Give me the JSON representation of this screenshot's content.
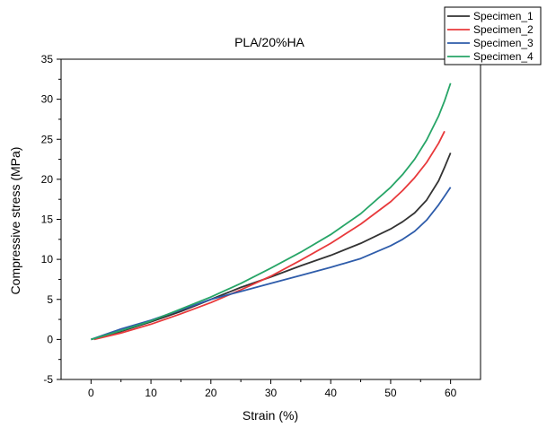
{
  "chart_data": {
    "type": "line",
    "title": "PLA/20%HA",
    "xlabel": "Strain (%)",
    "ylabel": "Compressive stress (MPa)",
    "xlim": [
      -5,
      65
    ],
    "ylim": [
      -5,
      35
    ],
    "xticks": [
      0,
      10,
      20,
      30,
      40,
      50,
      60
    ],
    "yticks": [
      -5,
      0,
      5,
      10,
      15,
      20,
      25,
      30,
      35
    ],
    "grid": false,
    "legend_position": "top-right",
    "series": [
      {
        "name": "Specimen_1",
        "color": "#333333",
        "points": [
          [
            0,
            0
          ],
          [
            5,
            1
          ],
          [
            10,
            2.2
          ],
          [
            15,
            3.5
          ],
          [
            20,
            5
          ],
          [
            25,
            6.5
          ],
          [
            30,
            7.8
          ],
          [
            35,
            9.2
          ],
          [
            40,
            10.5
          ],
          [
            45,
            12
          ],
          [
            50,
            13.8
          ],
          [
            52,
            14.7
          ],
          [
            54,
            15.8
          ],
          [
            56,
            17.4
          ],
          [
            58,
            19.8
          ],
          [
            59,
            21.5
          ],
          [
            60,
            23.3
          ]
        ]
      },
      {
        "name": "Specimen_2",
        "color": "#e8393b",
        "points": [
          [
            0.5,
            0
          ],
          [
            5,
            0.8
          ],
          [
            10,
            1.9
          ],
          [
            15,
            3.2
          ],
          [
            20,
            4.6
          ],
          [
            25,
            6.2
          ],
          [
            30,
            7.9
          ],
          [
            35,
            9.9
          ],
          [
            40,
            12
          ],
          [
            45,
            14.4
          ],
          [
            50,
            17.2
          ],
          [
            52,
            18.6
          ],
          [
            54,
            20.2
          ],
          [
            56,
            22.1
          ],
          [
            58,
            24.5
          ],
          [
            59,
            26
          ]
        ]
      },
      {
        "name": "Specimen_3",
        "color": "#2e5caa",
        "points": [
          [
            0,
            0
          ],
          [
            5,
            1.3
          ],
          [
            10,
            2.4
          ],
          [
            15,
            3.7
          ],
          [
            20,
            5
          ],
          [
            25,
            6
          ],
          [
            30,
            7
          ],
          [
            35,
            8
          ],
          [
            40,
            9
          ],
          [
            45,
            10.1
          ],
          [
            50,
            11.7
          ],
          [
            52,
            12.5
          ],
          [
            54,
            13.5
          ],
          [
            56,
            14.9
          ],
          [
            58,
            16.8
          ],
          [
            59,
            17.9
          ],
          [
            60,
            19
          ]
        ]
      },
      {
        "name": "Specimen_4",
        "color": "#27a567",
        "points": [
          [
            0,
            0
          ],
          [
            5,
            1.1
          ],
          [
            10,
            2.3
          ],
          [
            15,
            3.8
          ],
          [
            20,
            5.3
          ],
          [
            25,
            7
          ],
          [
            30,
            8.9
          ],
          [
            35,
            10.9
          ],
          [
            40,
            13.1
          ],
          [
            45,
            15.7
          ],
          [
            50,
            19
          ],
          [
            52,
            20.6
          ],
          [
            54,
            22.5
          ],
          [
            56,
            24.9
          ],
          [
            58,
            27.9
          ],
          [
            59,
            29.8
          ],
          [
            60,
            32
          ]
        ]
      }
    ]
  }
}
